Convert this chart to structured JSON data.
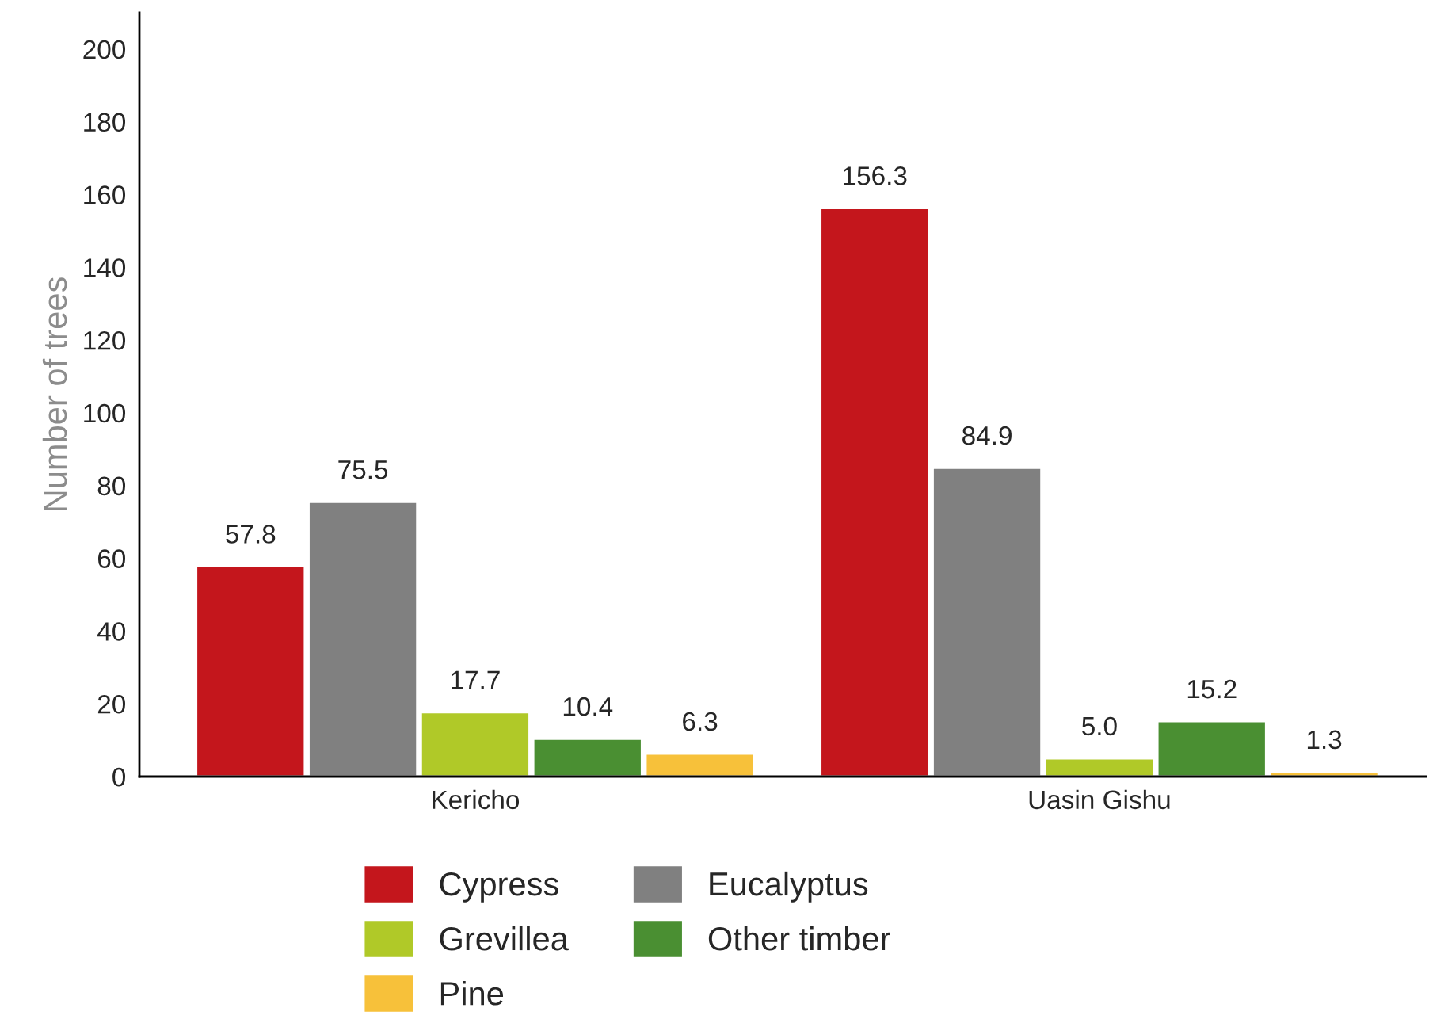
{
  "chart_data": {
    "type": "bar",
    "ylabel": "Number of trees",
    "categories": [
      "Kericho",
      "Uasin Gishu"
    ],
    "series": [
      {
        "name": "Cypress",
        "color": "#c4161c",
        "values": [
          57.8,
          156.3
        ]
      },
      {
        "name": "Eucalyptus",
        "color": "#808080",
        "values": [
          75.5,
          84.9
        ]
      },
      {
        "name": "Grevillea",
        "color": "#b0c928",
        "values": [
          17.7,
          5.0
        ]
      },
      {
        "name": "Other timber",
        "color": "#4a8f32",
        "values": [
          10.4,
          15.2
        ]
      },
      {
        "name": "Pine",
        "color": "#f7c13a",
        "values": [
          6.3,
          1.3
        ]
      }
    ],
    "value_labels": [
      [
        "57.8",
        "156.3"
      ],
      [
        "75.5",
        "84.9"
      ],
      [
        "17.7",
        "5.0"
      ],
      [
        "10.4",
        "15.2"
      ],
      [
        "6.3",
        "1.3"
      ]
    ],
    "ylim": [
      0,
      210
    ],
    "yticks": [
      0,
      20,
      40,
      60,
      80,
      100,
      120,
      140,
      160,
      180,
      200
    ],
    "grid": false,
    "legend": "bottom"
  }
}
